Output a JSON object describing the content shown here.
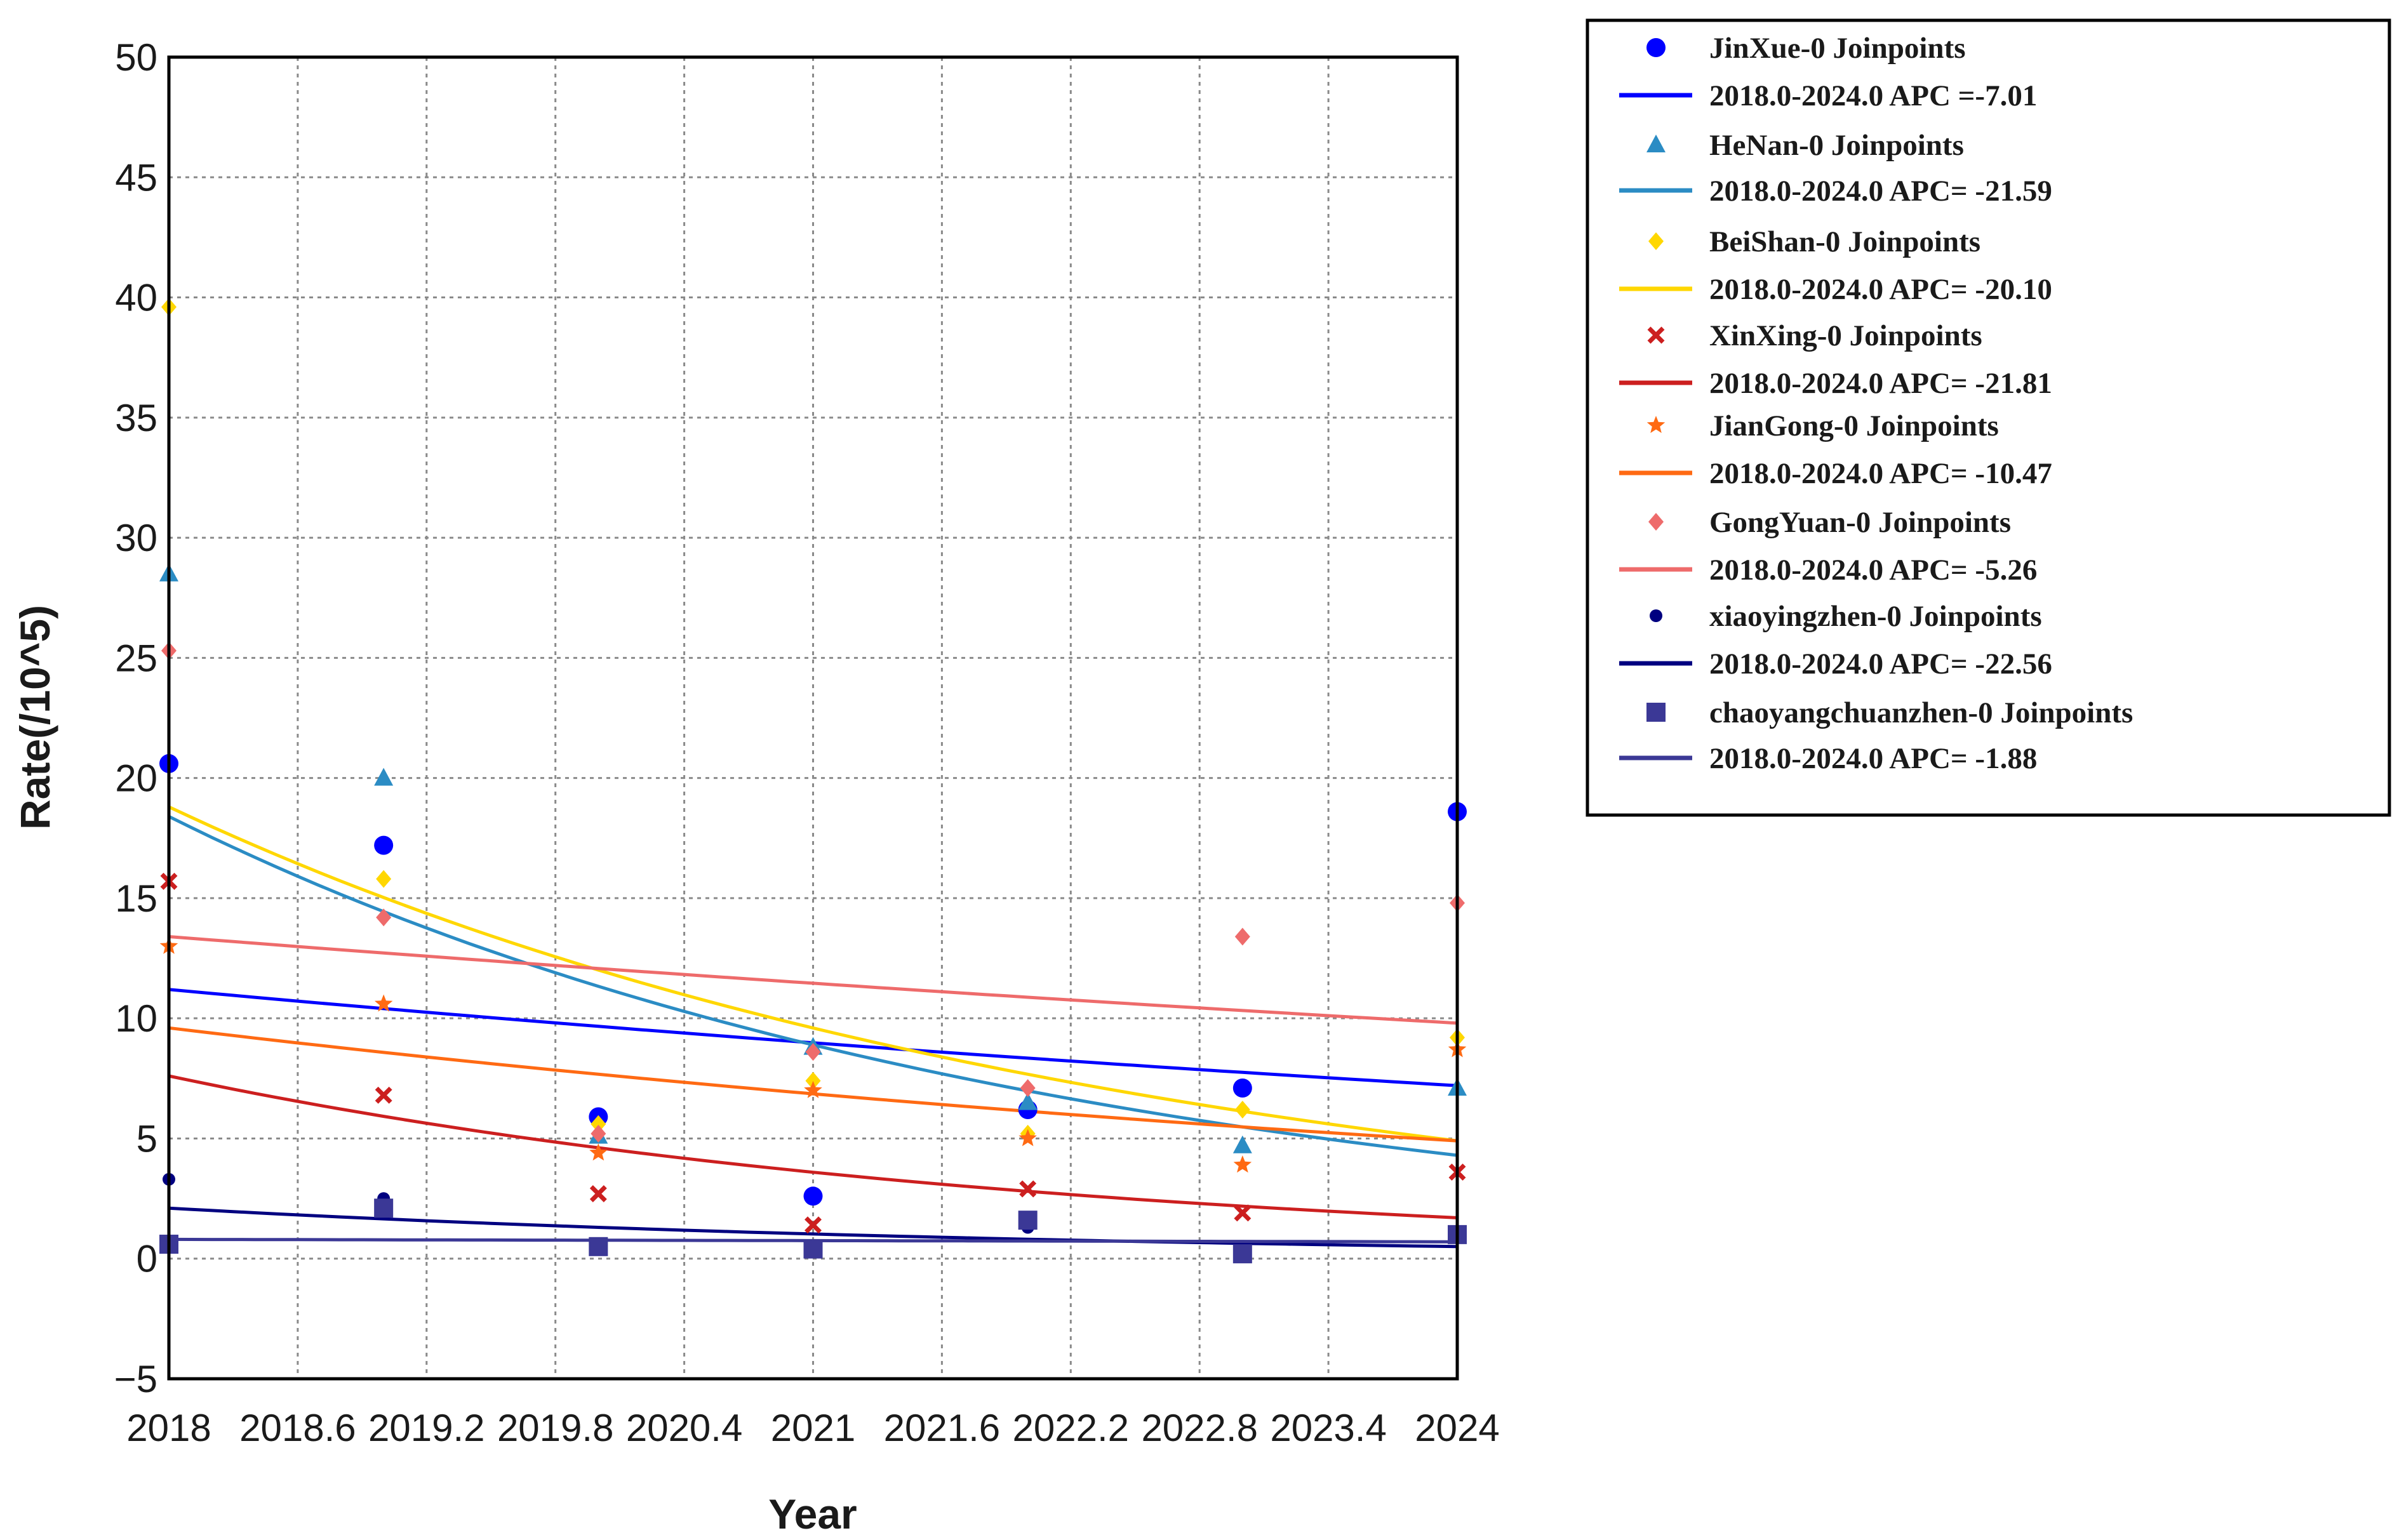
{
  "chart_data": {
    "type": "line",
    "xlabel": "Year",
    "ylabel": "Rate(/10^5)",
    "xlim": [
      2018,
      2024
    ],
    "ylim": [
      -5,
      50
    ],
    "xticks": [
      "2018",
      "2018.6",
      "2019.2",
      "2019.8",
      "2020.4",
      "2021",
      "2021.6",
      "2022.2",
      "2022.8",
      "2023.4",
      "2024"
    ],
    "yticks": [
      "−5",
      "0",
      "5",
      "10",
      "15",
      "20",
      "25",
      "30",
      "35",
      "40",
      "45",
      "50"
    ],
    "grid": true,
    "legend_position": "right",
    "series": [
      {
        "name": "JinXue-0 Joinpoints",
        "fit_label": "2018.0-2024.0 APC =-7.01",
        "color": "#0000ff",
        "marker": "circle",
        "points": [
          [
            2018,
            20.6
          ],
          [
            2019,
            17.2
          ],
          [
            2020,
            5.9
          ],
          [
            2021,
            2.6
          ],
          [
            2022,
            6.2
          ],
          [
            2023,
            7.1
          ],
          [
            2024,
            18.6
          ]
        ],
        "fit": [
          [
            2018,
            11.2
          ],
          [
            2024,
            7.2
          ]
        ]
      },
      {
        "name": "HeNan-0 Joinpoints",
        "fit_label": "2018.0-2024.0 APC= -21.59",
        "color": "#2b8cc4",
        "marker": "triangle",
        "points": [
          [
            2018,
            28.5
          ],
          [
            2019,
            20.0
          ],
          [
            2020,
            5.1
          ],
          [
            2021,
            8.8
          ],
          [
            2022,
            6.5
          ],
          [
            2023,
            4.7
          ],
          [
            2024,
            7.1
          ]
        ],
        "fit": [
          [
            2018,
            18.4
          ],
          [
            2024,
            4.3
          ]
        ]
      },
      {
        "name": "BeiShan-0 Joinpoints",
        "fit_label": "2018.0-2024.0 APC= -20.10",
        "color": "#ffd700",
        "marker": "diamond",
        "points": [
          [
            2018,
            39.6
          ],
          [
            2019,
            15.8
          ],
          [
            2020,
            5.6
          ],
          [
            2021,
            7.4
          ],
          [
            2022,
            5.2
          ],
          [
            2023,
            6.2
          ],
          [
            2024,
            9.2
          ]
        ],
        "fit": [
          [
            2018,
            18.8
          ],
          [
            2024,
            4.9
          ]
        ]
      },
      {
        "name": "XinXing-0 Joinpoints",
        "fit_label": "2018.0-2024.0 APC= -21.81",
        "color": "#cc1f1f",
        "marker": "x",
        "points": [
          [
            2018,
            15.7
          ],
          [
            2019,
            6.8
          ],
          [
            2020,
            2.7
          ],
          [
            2021,
            1.4
          ],
          [
            2022,
            2.9
          ],
          [
            2023,
            1.9
          ],
          [
            2024,
            3.6
          ]
        ],
        "fit": [
          [
            2018,
            7.6
          ],
          [
            2024,
            1.7
          ]
        ]
      },
      {
        "name": "JianGong-0 Joinpoints",
        "fit_label": "2018.0-2024.0 APC= -10.47",
        "color": "#ff6a13",
        "marker": "star",
        "points": [
          [
            2018,
            13.0
          ],
          [
            2019,
            10.6
          ],
          [
            2020,
            4.4
          ],
          [
            2021,
            7.0
          ],
          [
            2022,
            5.0
          ],
          [
            2023,
            3.9
          ],
          [
            2024,
            8.7
          ]
        ],
        "fit": [
          [
            2018,
            9.6
          ],
          [
            2024,
            4.9
          ]
        ]
      },
      {
        "name": "GongYuan-0 Joinpoints",
        "fit_label": "2018.0-2024.0 APC= -5.26",
        "color": "#ee6b6b",
        "marker": "diamond",
        "points": [
          [
            2018,
            25.3
          ],
          [
            2019,
            14.2
          ],
          [
            2020,
            5.2
          ],
          [
            2021,
            8.6
          ],
          [
            2022,
            7.1
          ],
          [
            2023,
            13.4
          ],
          [
            2024,
            14.8
          ]
        ],
        "fit": [
          [
            2018,
            13.4
          ],
          [
            2024,
            9.8
          ]
        ]
      },
      {
        "name": "xiaoyingzhen-0 Joinpoints",
        "fit_label": "2018.0-2024.0 APC= -22.56",
        "color": "#000080",
        "marker": "dot",
        "points": [
          [
            2018,
            3.3
          ],
          [
            2019,
            2.5
          ],
          [
            2020,
            0.6
          ],
          [
            2021,
            0.5
          ],
          [
            2022,
            1.3
          ],
          [
            2023,
            0.2
          ],
          [
            2024,
            0.9
          ]
        ],
        "fit": [
          [
            2018,
            2.1
          ],
          [
            2024,
            0.5
          ]
        ]
      },
      {
        "name": "chaoyangchuanzhen-0 Joinpoints",
        "fit_label": "2018.0-2024.0 APC= -1.88",
        "color": "#3b3896",
        "marker": "square",
        "points": [
          [
            2018,
            0.6
          ],
          [
            2019,
            2.1
          ],
          [
            2020,
            0.5
          ],
          [
            2021,
            0.4
          ],
          [
            2022,
            1.6
          ],
          [
            2023,
            0.2
          ],
          [
            2024,
            1.0
          ]
        ],
        "fit": [
          [
            2018,
            0.8
          ],
          [
            2024,
            0.7
          ]
        ]
      }
    ]
  }
}
